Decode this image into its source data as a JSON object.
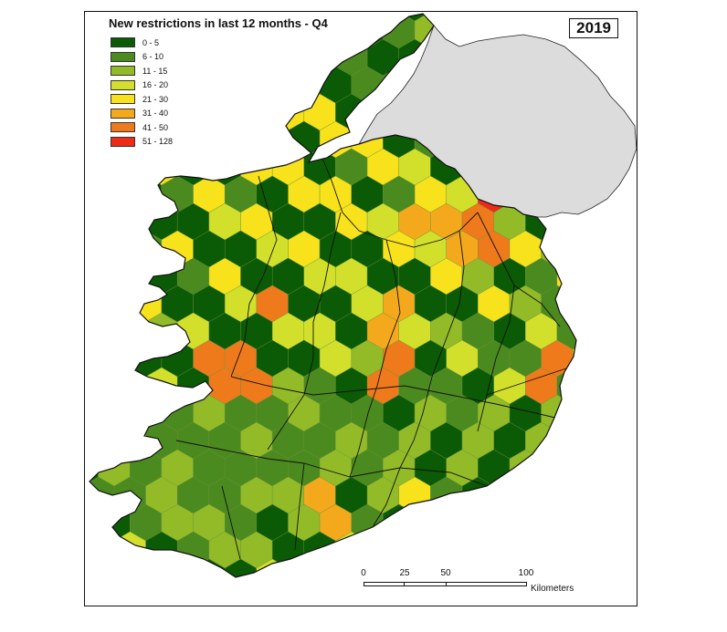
{
  "map": {
    "title": "New restrictions in last 12 months - Q4",
    "year": "2019",
    "legend": [
      {
        "label": "0 - 5",
        "color": "#0b5a05"
      },
      {
        "label": "6 - 10",
        "color": "#4b8a1e"
      },
      {
        "label": "11 - 15",
        "color": "#93bb28"
      },
      {
        "label": "16 - 20",
        "color": "#d3e02b"
      },
      {
        "label": "21 - 30",
        "color": "#f7e21b"
      },
      {
        "label": "31 - 40",
        "color": "#f4a91c"
      },
      {
        "label": "41 - 50",
        "color": "#ef7a1c"
      },
      {
        "label": "51 - 128",
        "color": "#ee2a19"
      }
    ],
    "scale": {
      "ticks": [
        "0",
        "25",
        "50",
        "100"
      ],
      "unit": "Kilometers"
    },
    "other_region_color": "#dcdcdc"
  }
}
